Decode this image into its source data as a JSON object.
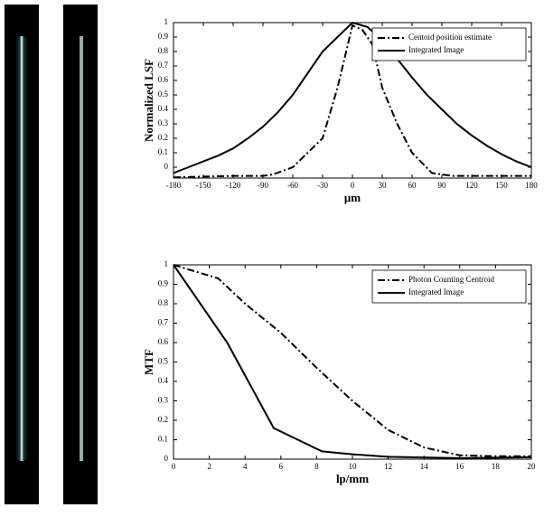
{
  "chart_data": [
    {
      "type": "line",
      "x_label": "μm",
      "y_label": "Normalized LSF",
      "xlim": [
        -180,
        180
      ],
      "xticks": [
        -180,
        -150,
        -120,
        -90,
        -60,
        -30,
        0,
        30,
        60,
        90,
        120,
        150,
        180
      ],
      "ylim": [
        -0.075,
        1
      ],
      "yticks": [
        0,
        0.1,
        0.2,
        0.3,
        0.4,
        0.5,
        0.6,
        0.7,
        0.8,
        0.9,
        1
      ],
      "legend": "upper-right",
      "series": [
        {
          "name": "Centoid position estimate",
          "color": "#000000",
          "linestyle": "dashdot",
          "x": [
            -180,
            -150,
            -120,
            -90,
            -80,
            -60,
            -45,
            -30,
            -15,
            0,
            10,
            20,
            30,
            45,
            60,
            80,
            100,
            150,
            180
          ],
          "values": [
            -0.07,
            -0.065,
            -0.06,
            -0.06,
            -0.05,
            0.0,
            0.1,
            0.2,
            0.55,
            0.98,
            0.95,
            0.85,
            0.55,
            0.3,
            0.1,
            -0.04,
            -0.06,
            -0.06,
            -0.06
          ]
        },
        {
          "name": "Integrated Image",
          "color": "#000000",
          "linestyle": "solid",
          "x": [
            -180,
            -165,
            -150,
            -135,
            -120,
            -105,
            -90,
            -75,
            -60,
            -45,
            -30,
            -15,
            0,
            15,
            30,
            45,
            60,
            75,
            90,
            105,
            120,
            135,
            150,
            165,
            180
          ],
          "values": [
            -0.04,
            0.0,
            0.04,
            0.08,
            0.13,
            0.2,
            0.28,
            0.38,
            0.5,
            0.65,
            0.8,
            0.9,
            1.0,
            0.97,
            0.88,
            0.75,
            0.62,
            0.5,
            0.4,
            0.3,
            0.22,
            0.15,
            0.09,
            0.04,
            0.0
          ]
        }
      ]
    },
    {
      "type": "line",
      "x_label": "lp/mm",
      "y_label": "MTF",
      "xlim": [
        0,
        20
      ],
      "xticks": [
        0,
        2,
        4,
        6,
        8,
        10,
        12,
        14,
        16,
        18,
        20
      ],
      "ylim": [
        0,
        1
      ],
      "yticks": [
        0,
        0.1,
        0.2,
        0.3,
        0.4,
        0.5,
        0.6,
        0.7,
        0.8,
        0.9,
        1
      ],
      "legend": "upper-right",
      "series": [
        {
          "name": "Photon Counting Centroid",
          "color": "#000000",
          "linestyle": "dashdot",
          "x": [
            0,
            2.5,
            4,
            6,
            8,
            10,
            12,
            14,
            16,
            18,
            20
          ],
          "values": [
            1,
            0.93,
            0.8,
            0.65,
            0.47,
            0.3,
            0.15,
            0.06,
            0.02,
            0.015,
            0.015
          ]
        },
        {
          "name": "Integrated Image",
          "color": "#000000",
          "linestyle": "solid",
          "x": [
            0,
            3,
            5.6,
            8.3,
            10,
            12,
            16,
            20
          ],
          "values": [
            1,
            0.6,
            0.16,
            0.04,
            0.025,
            0.012,
            0.005,
            0.01
          ]
        }
      ]
    }
  ]
}
